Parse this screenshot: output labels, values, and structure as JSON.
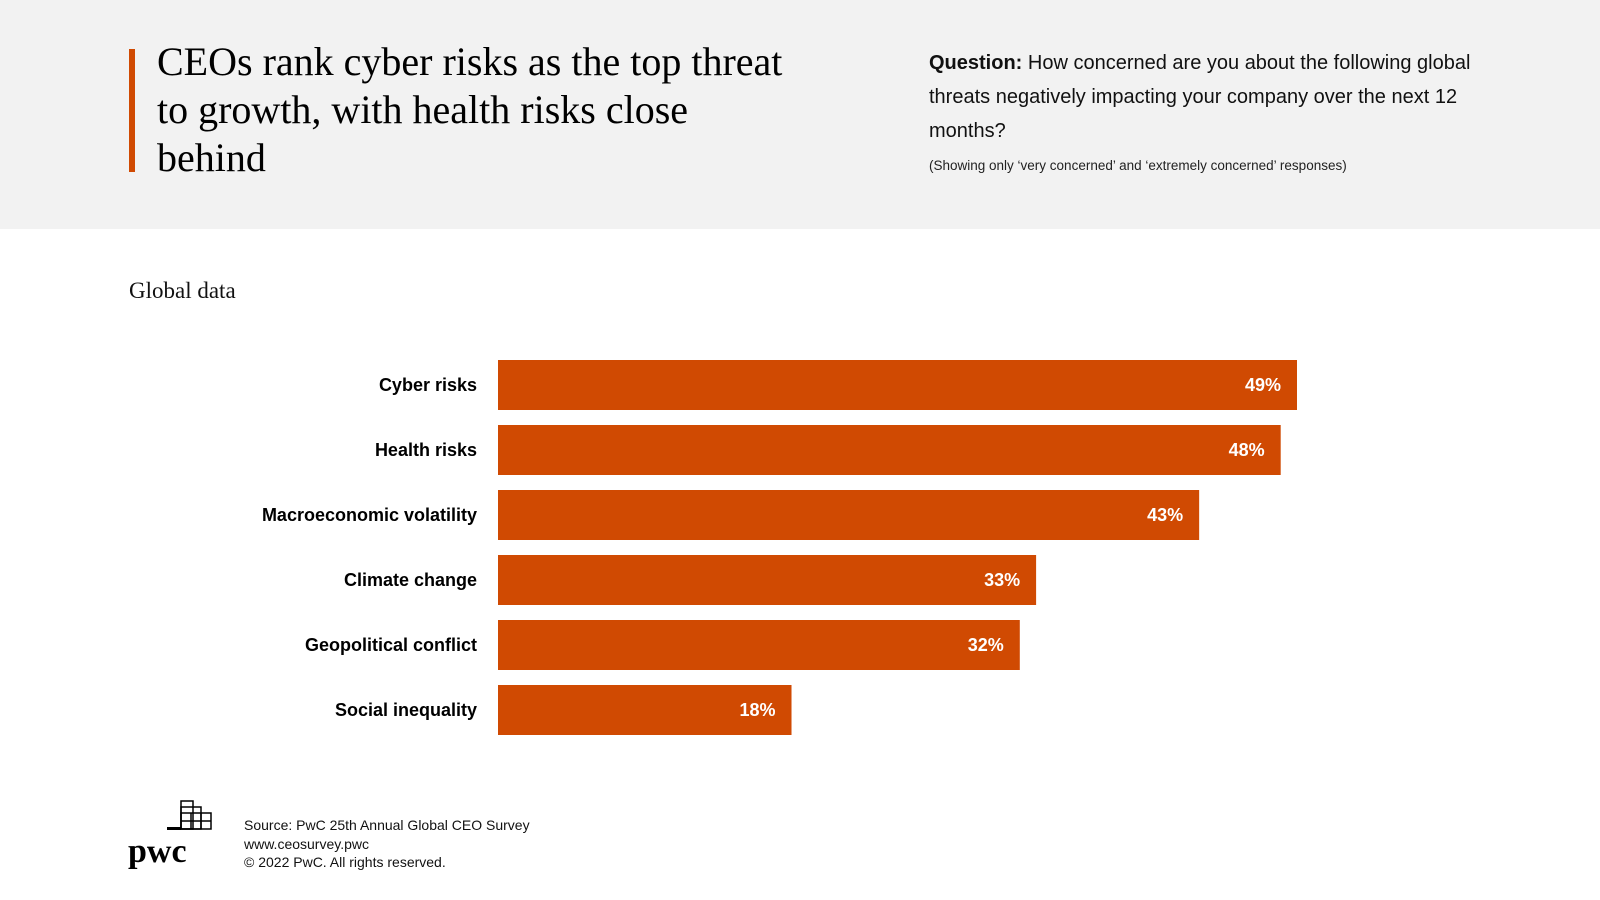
{
  "header": {
    "title": "CEOs rank cyber risks as the top threat to growth, with health risks close behind",
    "question_label": "Question:",
    "question_text": " How concerned are you about the following global threats negatively impacting your company over the next 12 months?",
    "note": "(Showing only ‘very concerned’ and ‘extremely concerned’ responses)"
  },
  "subtitle": "Global data",
  "chart_data": {
    "type": "bar",
    "orientation": "horizontal",
    "categories": [
      "Cyber risks",
      "Health risks",
      "Macroeconomic volatility",
      "Climate change",
      "Geopolitical conflict",
      "Social inequality"
    ],
    "values": [
      49,
      48,
      43,
      33,
      32,
      18
    ],
    "data_labels": [
      "49%",
      "48%",
      "43%",
      "33%",
      "32%",
      "18%"
    ],
    "unit": "%",
    "bar_color": "#d04a02",
    "grid": false
  },
  "footer": {
    "source": "Source: PwC 25th Annual Global CEO Survey",
    "url": "www.ceosurvey.pwc",
    "copyright": "© 2022 PwC. All rights reserved.",
    "logo_text": "pwc"
  },
  "colors": {
    "accent": "#d04a02",
    "header_bg": "#f2f2f2"
  }
}
